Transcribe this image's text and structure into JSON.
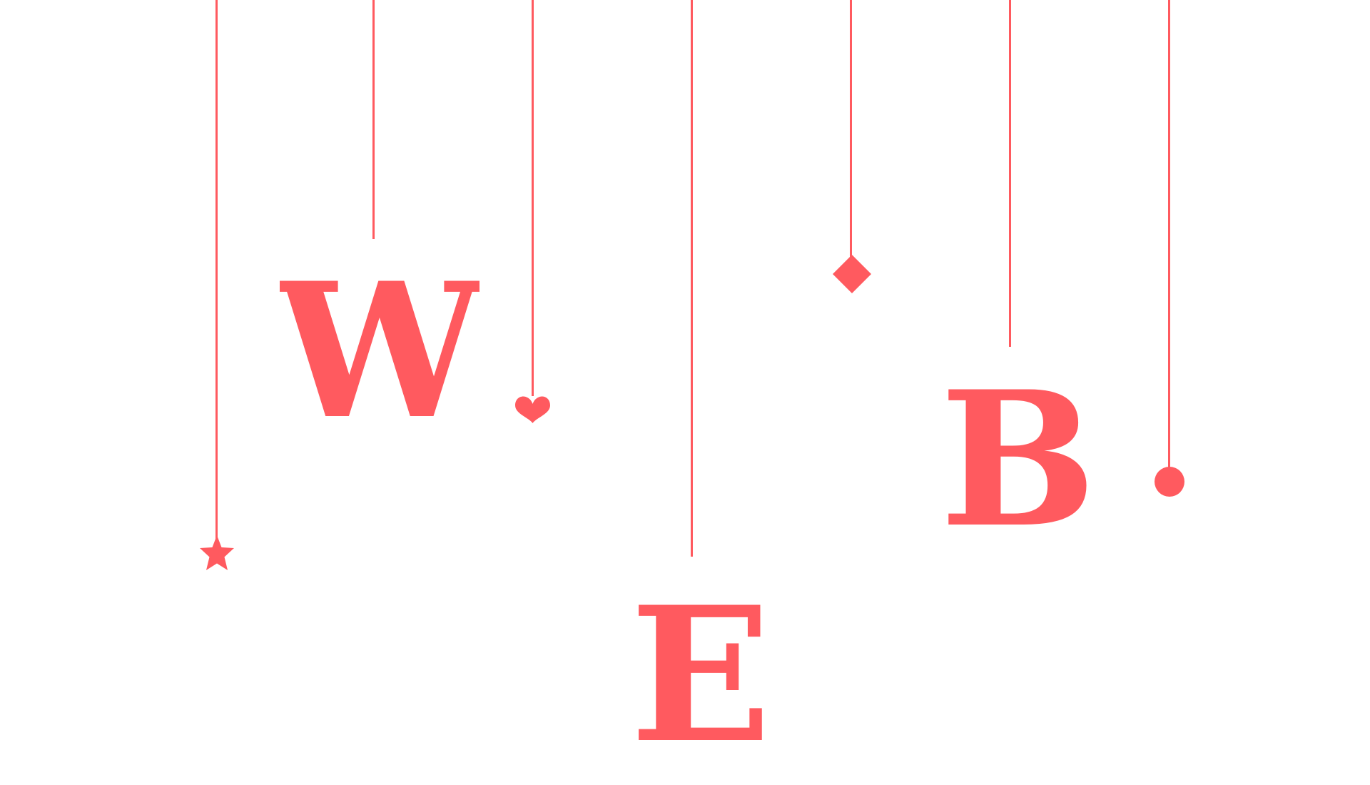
{
  "colors": {
    "accent": "#ff5a5f",
    "background": "#ffffff"
  },
  "letters": {
    "w": "W",
    "e": "E",
    "b": "B"
  },
  "ornaments": {
    "star": "star-icon",
    "heart": "heart-icon",
    "diamond": "diamond-icon",
    "circle": "circle-icon"
  }
}
